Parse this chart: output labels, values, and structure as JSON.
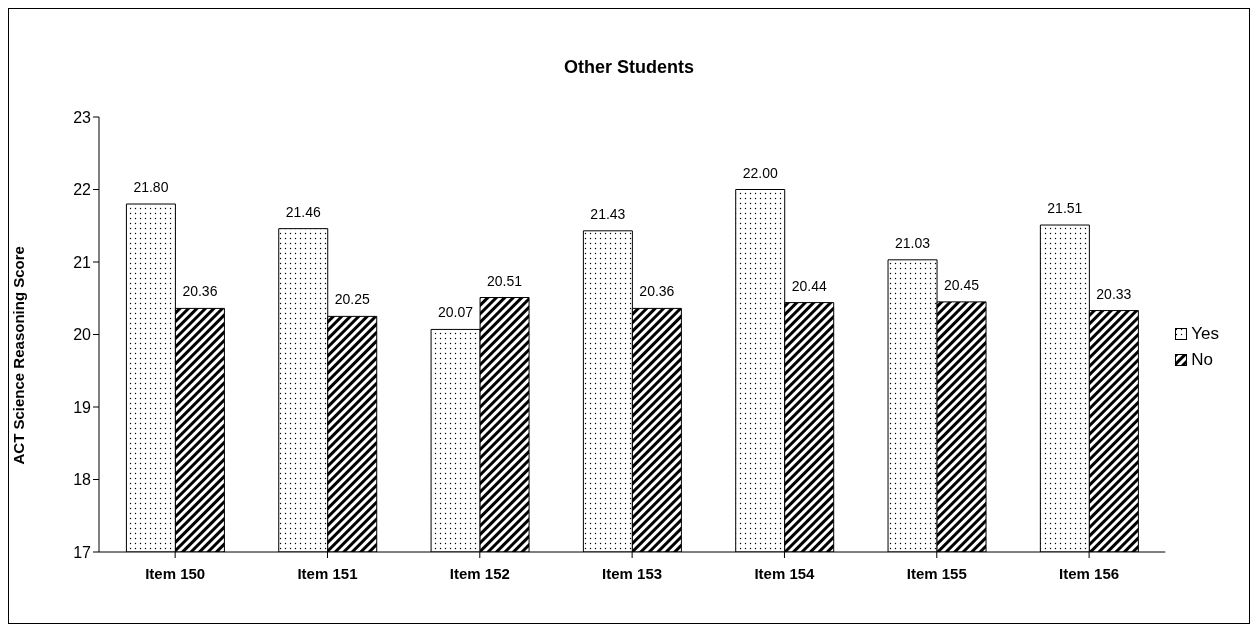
{
  "chart_data": {
    "type": "bar",
    "title": "Other Students",
    "ylabel": "ACT Science Reasoning Score",
    "categories": [
      "Item 150",
      "Item 151",
      "Item 152",
      "Item 153",
      "Item 154",
      "Item 155",
      "Item 156"
    ],
    "series": [
      {
        "name": "Yes",
        "color": "#000000",
        "values": [
          21.8,
          21.46,
          20.07,
          21.43,
          22.0,
          21.03,
          21.51
        ],
        "value_labels": [
          "21.80",
          "21.46",
          "20.07",
          "21.43",
          "22.00",
          "21.03",
          "21.51"
        ]
      },
      {
        "name": "No",
        "color": "#000000",
        "values": [
          20.36,
          20.25,
          20.51,
          20.36,
          20.44,
          20.45,
          20.33
        ],
        "value_labels": [
          "20.36",
          "20.25",
          "20.51",
          "20.36",
          "20.44",
          "20.45",
          "20.33"
        ]
      }
    ],
    "ylim": [
      17,
      23
    ],
    "yticks": [
      17,
      18,
      19,
      20,
      21,
      22,
      23
    ],
    "grid": false,
    "legend": "right"
  }
}
